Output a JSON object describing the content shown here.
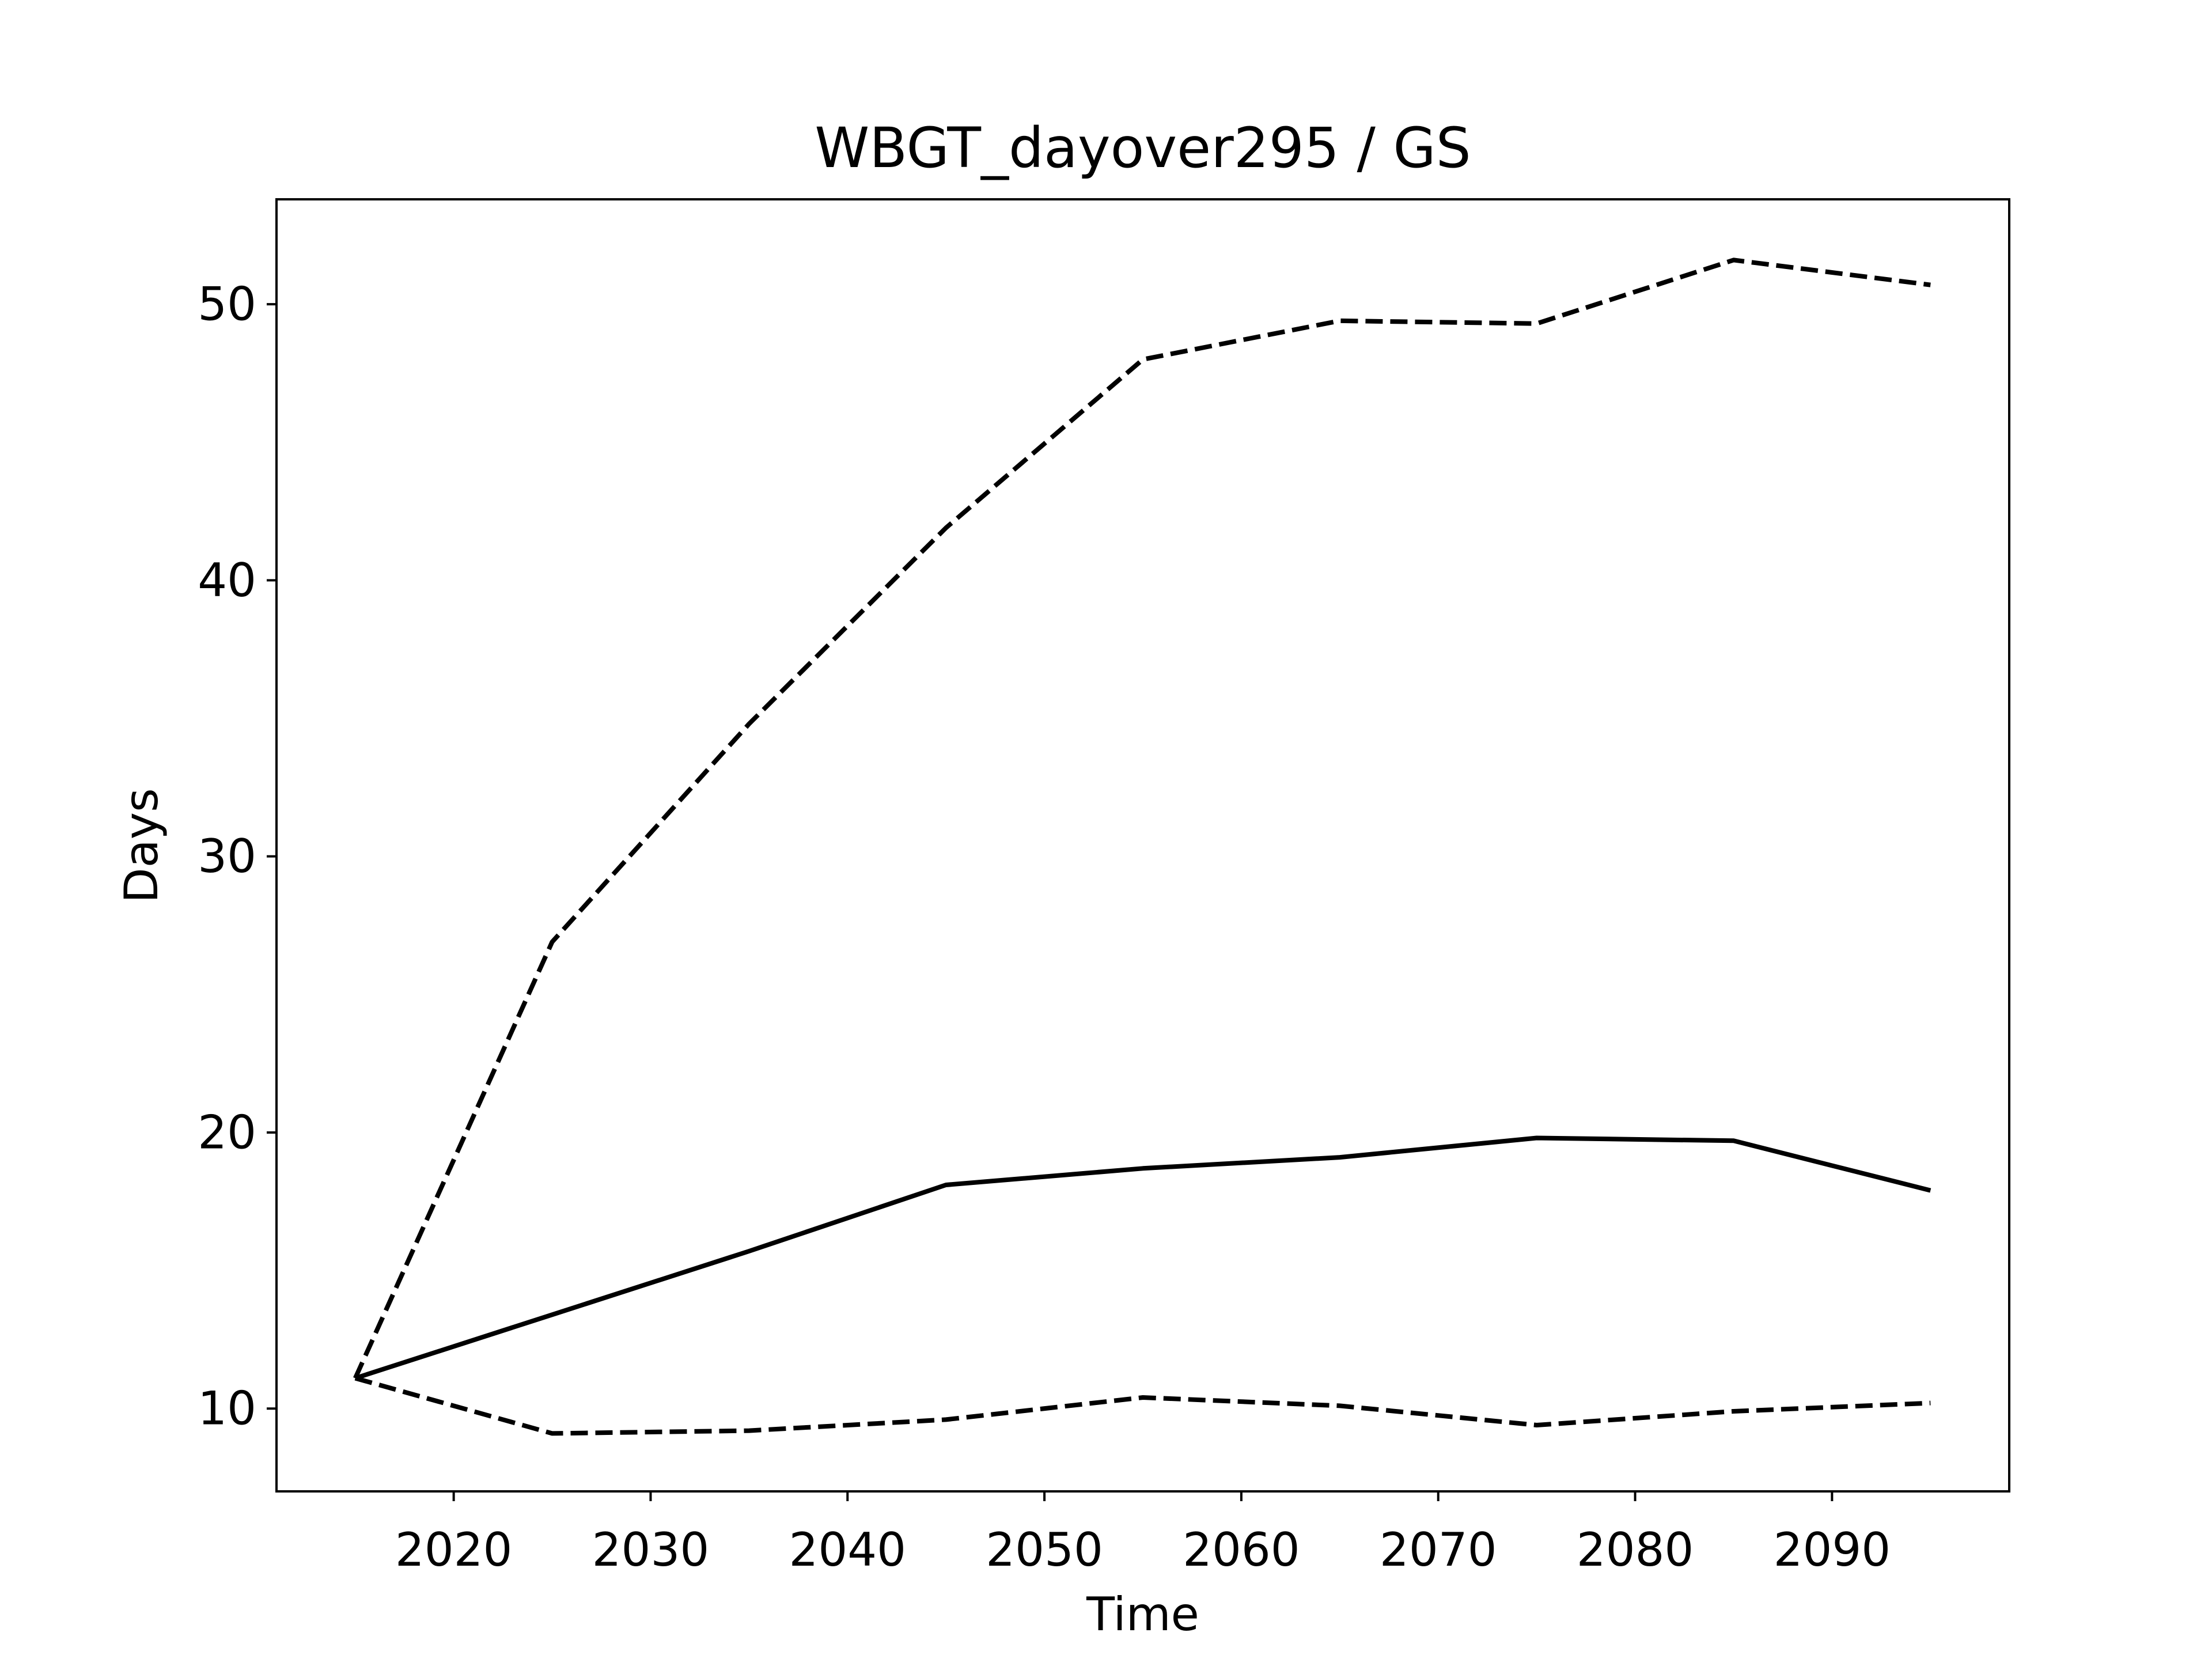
{
  "chart_data": {
    "type": "line",
    "title": "WBGT_dayover295 / GS",
    "xlabel": "Time",
    "ylabel": "Days",
    "xlim": [
      2011,
      2099
    ],
    "ylim": [
      7,
      53.8
    ],
    "xticks": [
      2020,
      2030,
      2040,
      2050,
      2060,
      2070,
      2080,
      2090
    ],
    "yticks": [
      10,
      20,
      30,
      40,
      50
    ],
    "grid": false,
    "legend": "none",
    "x": [
      2015,
      2025,
      2035,
      2045,
      2055,
      2065,
      2075,
      2085,
      2095
    ],
    "series": [
      {
        "style": "solid",
        "color": "#000000",
        "values": [
          11.1,
          13.4,
          15.7,
          18.1,
          18.7,
          19.1,
          19.8,
          19.7,
          17.9
        ]
      },
      {
        "style": "dashed",
        "color": "#000000",
        "values": [
          11.1,
          26.9,
          34.8,
          41.9,
          48.0,
          49.4,
          49.3,
          51.6,
          50.7
        ]
      },
      {
        "style": "dashed",
        "color": "#000000",
        "values": [
          11.1,
          9.1,
          9.2,
          9.6,
          10.4,
          10.1,
          9.4,
          9.9,
          10.2
        ]
      }
    ]
  }
}
